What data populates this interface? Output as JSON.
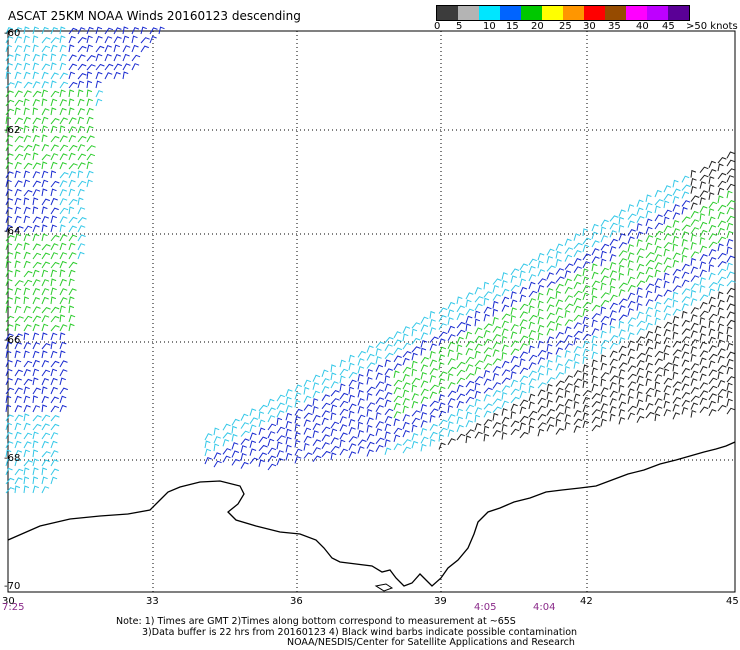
{
  "title": "ASCAT 25KM NOAA Winds 20160123 descending",
  "legend": {
    "labels": [
      "0",
      "5",
      "10",
      "15",
      "20",
      "25",
      "30",
      "35",
      "40",
      "45",
      ">50 knots"
    ],
    "colors": [
      "#3c3c3c",
      "#b4b4b4",
      "#00e6ff",
      "#0064ff",
      "#00c800",
      "#ffff00",
      "#ff9600",
      "#ff0000",
      "#964b00",
      "#ff00ff",
      "#be00ff",
      "#5a0096"
    ]
  },
  "axes": {
    "lon_ticks": [
      "30",
      "33",
      "36",
      "39",
      "42",
      "45"
    ],
    "lat_ticks": [
      "-60",
      "-62",
      "-64",
      "-66",
      "-68",
      "-70"
    ]
  },
  "pass_times": [
    "7:25",
    "4:05",
    "4:04"
  ],
  "notes": [
    "Note: 1) Times are GMT 2)Times along bottom correspond to measurement at ~65S",
    "3)Data buffer is 22 hrs from 20160123 4) Black wind barbs indicate possible contamination",
    "NOAA/NESDIS/Center for Satellite Applications and Research"
  ]
}
